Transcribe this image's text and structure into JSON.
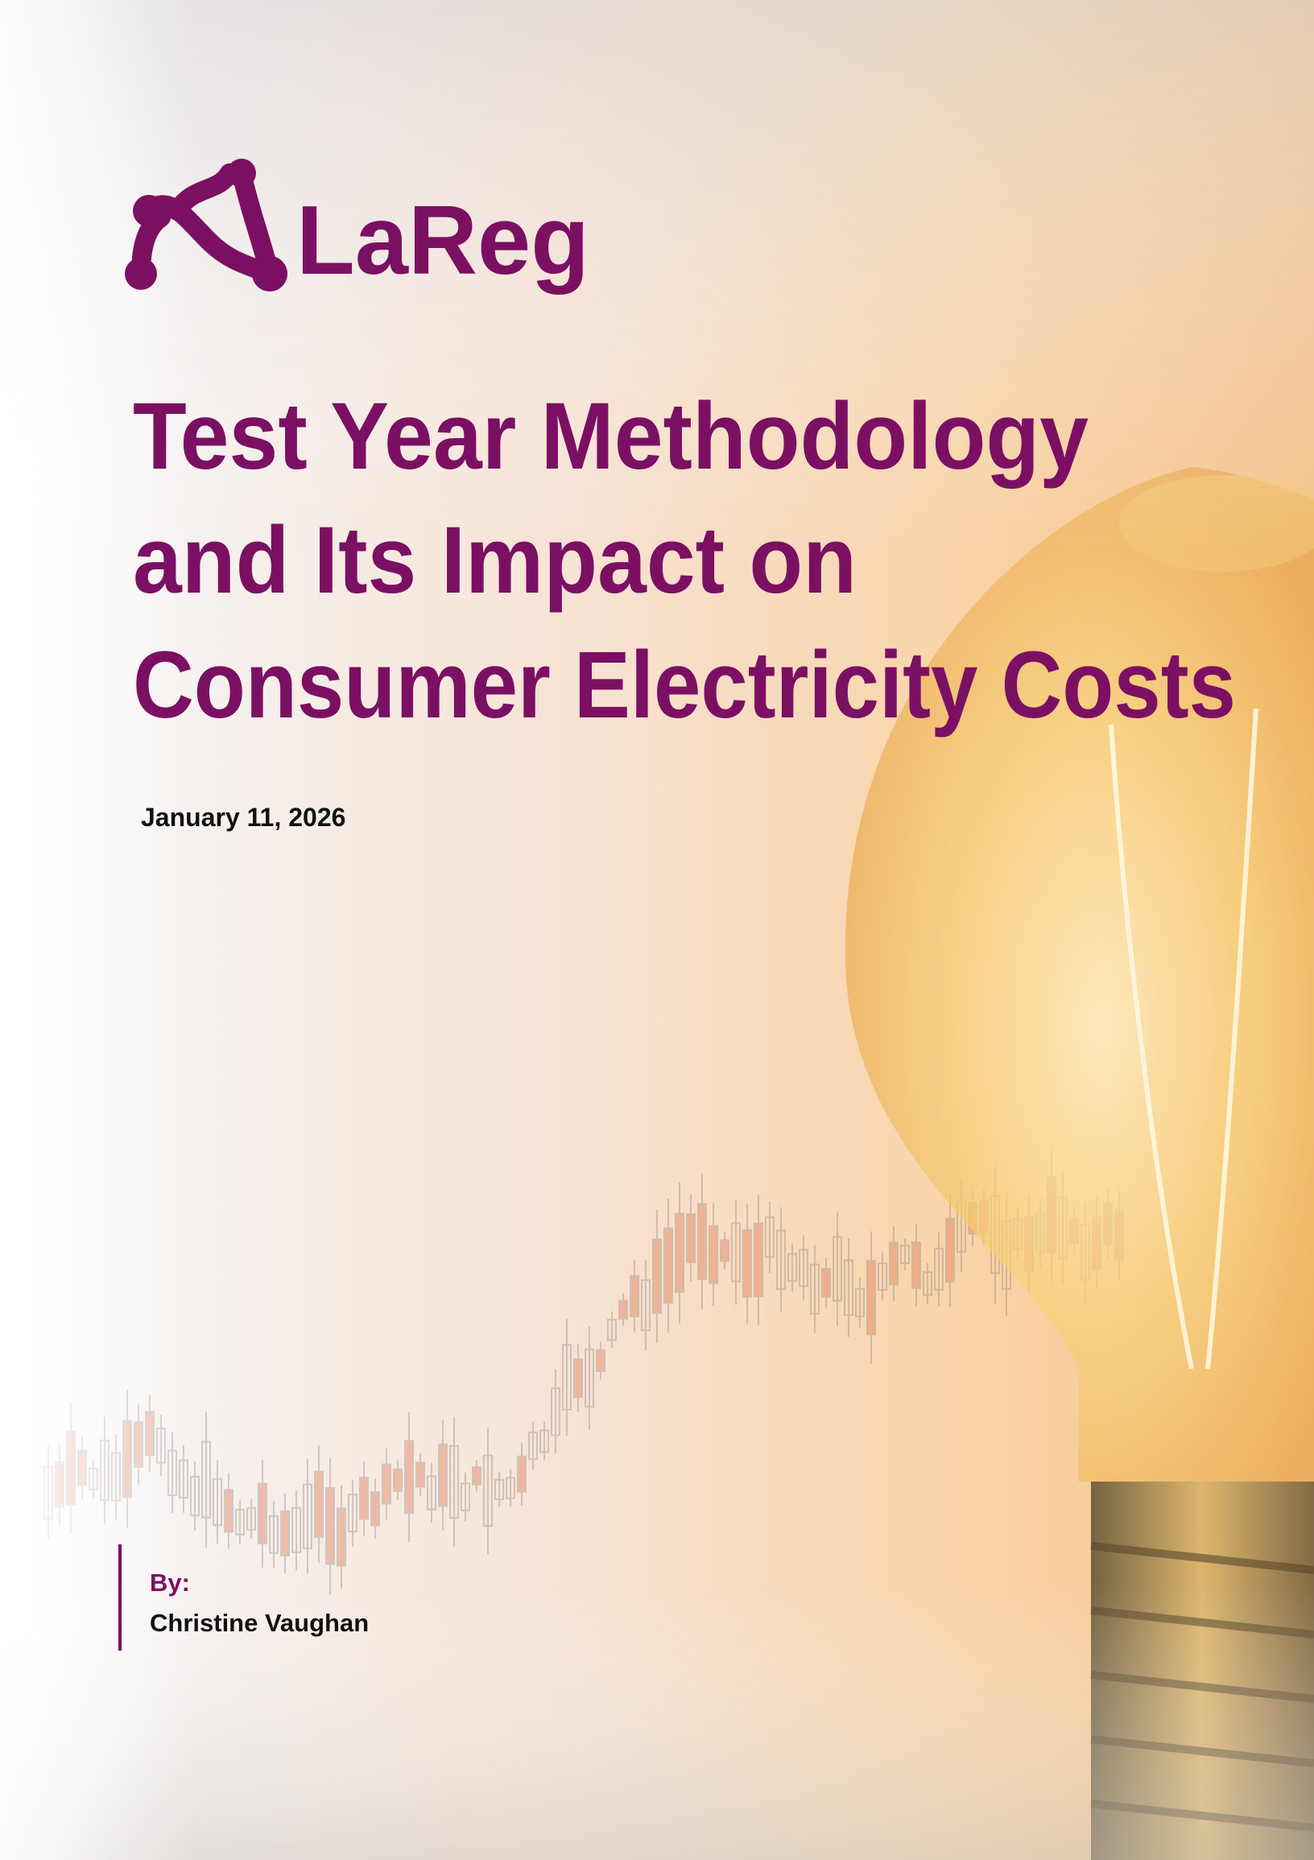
{
  "logo": {
    "name": "LaReg"
  },
  "title": {
    "lines": [
      "Test Year Methodology",
      "and Its Impact on",
      "Consumer Electricity Costs"
    ]
  },
  "date": "January 11, 2026",
  "byline": {
    "label": "By:",
    "author": "Christine Vaughan"
  }
}
